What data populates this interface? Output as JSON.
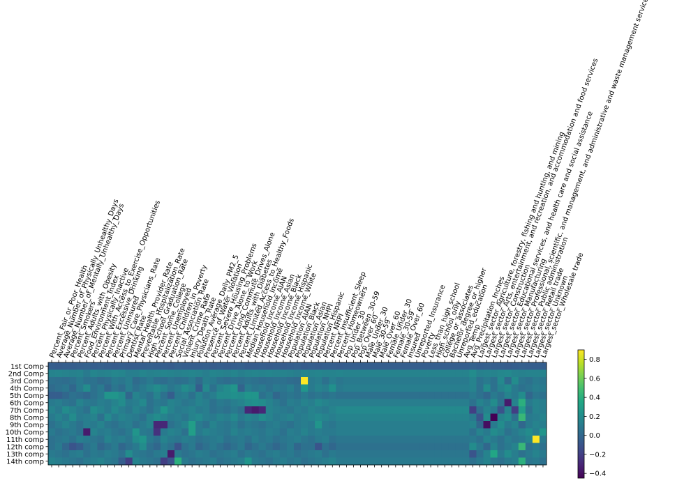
{
  "chart_data": {
    "type": "heatmap",
    "rows": [
      "1st Comp",
      "2nd Comp",
      "3rd Comp",
      "4th Comp",
      "5th Comp",
      "6th Comp",
      "7th Comp",
      "8th Comp",
      "9th Comp",
      "10th Comp",
      "11th comp",
      "12th comp",
      "13th comp",
      "14th comp"
    ],
    "columns": [
      "Percent_Fair_or_Poor_Health",
      "Average_Number_of_Physically_Unhealthy_Days",
      "Average_Number_of_Mentally_Unhealthy_Days",
      "Percent_Smokers",
      "Percent_Adults_with_Obesity",
      "Food_Environment_Index",
      "Percent_Physically_Inactive",
      "Percent_With_Access_to_Exercise_Opportunities",
      "Percent_Excessive_Drinking",
      "Percent_Uninsured",
      "Primary_Care_Physicians_Rate",
      "Dentist_Rate",
      "Mental_Health_Provider_Rate",
      "Preventable_Hospitalization_Rate",
      "High_School_Graduation_Rate",
      "Percent_Some_College",
      "Percent_Unemployed",
      "Percent_Children_in_Poverty",
      "Social_Association_Rate",
      "Violent_Crime_Rate",
      "Injury_Death_Rate",
      "Pollution_Average_Daily_PM2_5",
      "Presence_of_Water_Violation",
      "Percent_Severe_Housing_Problems",
      "Percent_Drive_Alone_to_Work",
      "Percent_Long_Commute_Drives_Alone",
      "Percent_Adults_with_Diabetes",
      "Percent_Limited_Access_to_Healthy_Foods",
      "Median_Household_Income",
      "Household_Income_AIAN",
      "Household_Income_Asian",
      "Household_Income_Black",
      "Household_Income_Hispanic",
      "Household_Income_White",
      "Population_AIAN",
      "Population_Black",
      "Population_Asian",
      "Population_NHPI",
      "Population_Hispanic",
      "Percent_NHPI",
      "Percent_Insufficient_Sleep",
      "Percent_Homeowners",
      "Pop_Under_30",
      "Pop_Between_30-59",
      "Pop_Over_60",
      "Male_Under_30",
      "Male_30-59",
      "Male_Over_60",
      "Female_Under_30",
      "Female_30-59",
      "Female_Over_60",
      "Insured",
      "Unreported_Insurance",
      "Poverty",
      "Less_than_high_school",
      "High_school_only",
      "College_or_associates",
      "Bachelor_degree_or_higher",
      "Unreported_education",
      "Avg_Temp",
      "Avg_Precipitation_Inches",
      "Largest_sector_Agriculture, forestry, fishing and hunting, and mining",
      "Largest_sector_Arts, entertainment, and recreation, and accommodation and food services",
      "Largest_sector_Construction",
      "Largest_sector_Educational services, and health care and social assistance",
      "Largest_sector_Manufacturing",
      "Largest_sector_Professional, scientific, and management, and administrative and waste management services",
      "Largest_sector_Public administration",
      "Largest_sector_Retail trade",
      "Largest_sector_Unknown",
      "Largest_sector_Wholesale trade"
    ],
    "colorbar": {
      "min": -0.45,
      "max": 0.9,
      "ticks": [
        -0.4,
        -0.2,
        0.0,
        0.2,
        0.4,
        0.6,
        0.8
      ],
      "tick_labels": [
        "−0.4",
        "−0.2",
        "0.0",
        "0.2",
        "0.4",
        "0.6",
        "0.8"
      ]
    },
    "colormap": "viridis",
    "values": [
      [
        -0.05,
        -0.06,
        -0.05,
        -0.05,
        -0.04,
        -0.03,
        -0.05,
        -0.04,
        -0.05,
        -0.06,
        -0.05,
        -0.06,
        -0.06,
        -0.05,
        -0.04,
        -0.05,
        -0.05,
        -0.06,
        -0.04,
        -0.05,
        -0.05,
        -0.05,
        -0.04,
        -0.06,
        -0.05,
        -0.06,
        -0.05,
        -0.04,
        -0.06,
        -0.06,
        -0.05,
        -0.06,
        -0.05,
        -0.06,
        -0.05,
        -0.04,
        -0.06,
        -0.05,
        -0.06,
        -0.05,
        -0.05,
        -0.06,
        -0.05,
        -0.05,
        -0.05,
        -0.05,
        -0.05,
        -0.05,
        -0.05,
        -0.05,
        -0.05,
        -0.05,
        -0.05,
        -0.05,
        -0.05,
        -0.05,
        -0.05,
        -0.05,
        -0.05,
        -0.05,
        -0.03,
        -0.05,
        -0.04,
        -0.05,
        -0.05,
        -0.06,
        -0.05,
        -0.04,
        -0.05,
        -0.05,
        -0.05
      ],
      [
        0.15,
        0.16,
        0.15,
        0.14,
        0.15,
        0.1,
        0.16,
        0.14,
        0.15,
        0.17,
        0.16,
        0.12,
        0.13,
        0.16,
        0.14,
        0.15,
        0.16,
        0.15,
        0.14,
        0.15,
        0.16,
        0.15,
        0.12,
        0.16,
        0.15,
        0.14,
        0.16,
        0.13,
        0.15,
        0.16,
        0.15,
        0.16,
        0.15,
        0.15,
        0.14,
        0.12,
        0.16,
        0.15,
        0.16,
        0.15,
        0.15,
        0.16,
        0.15,
        0.15,
        0.15,
        0.15,
        0.15,
        0.15,
        0.15,
        0.15,
        0.15,
        0.15,
        0.15,
        0.15,
        0.15,
        0.15,
        0.15,
        0.15,
        0.15,
        0.15,
        0.2,
        0.14,
        0.15,
        0.15,
        0.17,
        0.18,
        0.15,
        0.14,
        0.15,
        0.15,
        0.15
      ],
      [
        0.05,
        0.04,
        0.03,
        0.05,
        0.1,
        0.05,
        0.06,
        0.02,
        0.04,
        0.1,
        0.08,
        0.12,
        0.02,
        0.06,
        0.1,
        0.04,
        0.03,
        0.07,
        0.04,
        0.05,
        0.1,
        0.02,
        0.13,
        0.1,
        0.05,
        0.03,
        0.06,
        0.04,
        0.07,
        0.05,
        0.03,
        0.04,
        0.05,
        0.05,
        0.03,
        0.02,
        0.9,
        0.1,
        0.12,
        0.05,
        0.12,
        0.08,
        0.1,
        0.1,
        0.1,
        0.1,
        0.1,
        0.1,
        0.1,
        0.1,
        0.1,
        0.1,
        0.1,
        0.1,
        0.1,
        0.1,
        0.1,
        0.1,
        0.1,
        0.1,
        0.15,
        0.06,
        0.1,
        0.05,
        0.18,
        0.02,
        0.2,
        0.08,
        0.05,
        0.1,
        0.08
      ],
      [
        0.02,
        0.05,
        0.08,
        0.0,
        0.1,
        0.2,
        0.05,
        0.1,
        0.0,
        0.08,
        0.03,
        0.12,
        0.05,
        0.1,
        0.15,
        0.2,
        0.15,
        0.08,
        0.12,
        0.2,
        0.15,
        -0.05,
        0.18,
        0.05,
        0.15,
        0.2,
        0.25,
        -0.02,
        0.12,
        0.08,
        0.1,
        0.05,
        0.1,
        0.08,
        0.12,
        0.05,
        0.25,
        0.1,
        0.15,
        0.12,
        0.22,
        0.1,
        0.12,
        0.12,
        0.12,
        0.12,
        0.12,
        0.12,
        0.12,
        0.12,
        0.12,
        0.12,
        0.12,
        0.12,
        0.12,
        0.12,
        0.12,
        0.12,
        0.12,
        0.12,
        0.15,
        0.05,
        0.2,
        0.05,
        0.15,
        0.2,
        0.1,
        0.05,
        0.08,
        0.12,
        0.1
      ],
      [
        -0.05,
        -0.05,
        0.0,
        0.05,
        0.03,
        0.0,
        0.05,
        0.1,
        0.25,
        0.25,
        0.2,
        0.0,
        0.15,
        0.1,
        0.05,
        0.15,
        0.05,
        -0.05,
        0.1,
        0.12,
        0.05,
        0.15,
        0.08,
        0.12,
        0.2,
        0.2,
        0.22,
        0.2,
        0.25,
        0.25,
        0.05,
        0.1,
        0.0,
        0.05,
        0.08,
        0.05,
        0.1,
        0.05,
        0.08,
        0.05,
        0.08,
        0.05,
        0.05,
        0.05,
        0.05,
        0.05,
        0.05,
        0.05,
        0.05,
        0.05,
        0.05,
        0.05,
        0.05,
        0.05,
        0.05,
        0.05,
        0.05,
        0.05,
        0.05,
        0.05,
        0.1,
        0.05,
        0.0,
        0.1,
        0.05,
        0.15,
        0.1,
        0.2,
        0.0,
        0.08,
        0.05
      ],
      [
        0.1,
        0.12,
        0.08,
        0.05,
        0.15,
        0.1,
        0.08,
        0.12,
        0.1,
        0.15,
        0.2,
        0.1,
        0.12,
        0.18,
        0.05,
        0.1,
        0.08,
        0.15,
        0.12,
        0.08,
        0.1,
        0.15,
        0.12,
        0.05,
        0.1,
        0.08,
        0.12,
        0.15,
        0.2,
        0.22,
        0.2,
        0.15,
        0.1,
        0.05,
        0.12,
        0.1,
        0.15,
        0.12,
        0.18,
        0.15,
        0.12,
        0.12,
        0.12,
        0.12,
        0.12,
        0.12,
        0.12,
        0.12,
        0.12,
        0.12,
        0.12,
        0.12,
        0.12,
        0.12,
        0.12,
        0.12,
        0.12,
        0.12,
        0.12,
        0.12,
        0.05,
        0.15,
        0.1,
        0.2,
        0.05,
        -0.35,
        0.15,
        0.4,
        0.1,
        0.15,
        0.12
      ],
      [
        0.15,
        0.1,
        0.2,
        0.15,
        0.1,
        0.05,
        0.2,
        0.15,
        0.1,
        0.18,
        0.12,
        0.08,
        0.15,
        0.1,
        0.05,
        0.12,
        0.25,
        0.15,
        0.1,
        0.12,
        0.15,
        0.1,
        0.12,
        0.05,
        0.08,
        0.05,
        0.1,
        0.05,
        -0.3,
        -0.35,
        -0.3,
        0.15,
        0.12,
        0.1,
        0.08,
        0.12,
        0.1,
        0.15,
        0.12,
        0.1,
        0.15,
        0.18,
        0.18,
        0.18,
        0.18,
        0.18,
        0.18,
        0.18,
        0.18,
        0.18,
        0.18,
        0.18,
        0.18,
        0.18,
        0.18,
        0.18,
        0.18,
        0.18,
        0.18,
        0.18,
        -0.2,
        0.05,
        0.15,
        0.1,
        -0.1,
        0.15,
        -0.2,
        0.3,
        0.05,
        0.15,
        0.12
      ],
      [
        0.1,
        0.15,
        0.1,
        0.2,
        0.1,
        0.12,
        0.15,
        0.05,
        0.18,
        0.1,
        0.15,
        0.12,
        0.1,
        0.05,
        0.15,
        0.2,
        0.15,
        0.1,
        0.12,
        0.08,
        0.15,
        0.18,
        0.12,
        0.1,
        0.15,
        0.12,
        0.18,
        0.1,
        0.15,
        0.12,
        0.2,
        0.15,
        0.1,
        0.12,
        0.15,
        0.1,
        0.12,
        0.15,
        0.18,
        0.15,
        0.12,
        0.15,
        0.15,
        0.15,
        0.15,
        0.15,
        0.15,
        0.15,
        0.15,
        0.15,
        0.15,
        0.15,
        0.15,
        0.15,
        0.15,
        0.15,
        0.15,
        0.15,
        0.15,
        0.15,
        0.1,
        -0.1,
        0.2,
        -0.45,
        0.15,
        0.2,
        0.05,
        0.45,
        0.1,
        0.12,
        0.15
      ],
      [
        0.05,
        0.1,
        0.15,
        0.1,
        0.05,
        0.12,
        0.1,
        0.15,
        0.08,
        0.05,
        0.1,
        0.12,
        0.05,
        0.1,
        0.15,
        -0.3,
        -0.3,
        0.05,
        0.1,
        0.15,
        0.3,
        0.1,
        0.05,
        0.15,
        0.1,
        0.08,
        0.12,
        0.05,
        0.1,
        0.08,
        0.05,
        0.1,
        0.12,
        0.08,
        0.05,
        0.1,
        0.12,
        0.1,
        0.25,
        0.1,
        0.08,
        0.12,
        0.12,
        0.12,
        0.12,
        0.12,
        0.12,
        0.12,
        0.12,
        0.12,
        0.12,
        0.12,
        0.12,
        0.12,
        0.12,
        0.12,
        0.12,
        0.12,
        0.12,
        0.12,
        0.15,
        0.0,
        -0.4,
        0.1,
        0.2,
        0.1,
        0.15,
        0.0,
        0.1,
        0.15,
        0.12
      ],
      [
        0.1,
        0.05,
        0.08,
        0.1,
        0.05,
        -0.35,
        0.15,
        0.1,
        0.12,
        0.08,
        0.05,
        0.1,
        0.25,
        0.1,
        0.08,
        -0.25,
        0.1,
        0.15,
        0.12,
        0.05,
        0.3,
        0.1,
        0.15,
        0.12,
        0.1,
        0.08,
        0.15,
        0.1,
        0.12,
        0.1,
        0.08,
        0.12,
        0.1,
        0.05,
        0.12,
        0.1,
        0.15,
        0.1,
        0.12,
        0.1,
        0.1,
        0.12,
        0.12,
        0.12,
        0.12,
        0.12,
        0.12,
        0.12,
        0.12,
        0.12,
        0.12,
        0.12,
        0.12,
        0.12,
        0.12,
        0.12,
        0.12,
        0.12,
        0.12,
        0.12,
        0.05,
        0.15,
        0.1,
        0.2,
        0.15,
        0.05,
        0.1,
        0.15,
        0.2,
        0.12,
        0.25
      ],
      [
        0.05,
        0.08,
        0.1,
        0.05,
        0.12,
        0.1,
        0.08,
        0.05,
        0.15,
        0.1,
        0.12,
        0.08,
        0.2,
        0.25,
        0.1,
        0.05,
        0.15,
        0.1,
        0.08,
        0.12,
        0.1,
        0.05,
        0.08,
        0.1,
        0.12,
        0.05,
        0.08,
        0.1,
        0.05,
        0.12,
        0.08,
        0.1,
        0.05,
        0.08,
        0.1,
        0.12,
        0.08,
        0.05,
        0.1,
        0.12,
        0.05,
        0.08,
        0.08,
        0.08,
        0.08,
        0.08,
        0.08,
        0.08,
        0.08,
        0.08,
        0.08,
        0.08,
        0.08,
        0.08,
        0.08,
        0.08,
        0.08,
        0.08,
        0.08,
        0.08,
        0.1,
        0.05,
        0.15,
        0.1,
        0.05,
        0.12,
        0.08,
        0.1,
        0.15,
        0.9,
        0.1
      ],
      [
        0.05,
        0.1,
        0.0,
        -0.1,
        -0.05,
        0.05,
        0.1,
        0.0,
        0.05,
        0.1,
        0.0,
        0.05,
        0.1,
        0.2,
        0.05,
        0.0,
        0.1,
        0.05,
        -0.1,
        0.05,
        0.1,
        0.0,
        0.05,
        0.1,
        0.05,
        0.0,
        0.05,
        0.1,
        0.0,
        0.05,
        0.1,
        0.05,
        0.0,
        0.05,
        0.1,
        0.0,
        0.05,
        0.05,
        -0.1,
        0.05,
        0.0,
        0.05,
        0.05,
        0.05,
        0.05,
        0.05,
        0.05,
        0.05,
        0.05,
        0.05,
        0.05,
        0.05,
        0.05,
        0.05,
        0.05,
        0.05,
        0.05,
        0.05,
        0.05,
        0.05,
        0.2,
        0.1,
        0.0,
        0.15,
        0.05,
        0.1,
        0.15,
        0.45,
        0.05,
        0.1,
        0.05
      ],
      [
        0.1,
        0.08,
        0.05,
        0.1,
        0.12,
        0.05,
        0.1,
        0.08,
        0.12,
        0.1,
        0.05,
        0.2,
        0.1,
        0.08,
        0.05,
        0.1,
        0.12,
        -0.35,
        0.1,
        0.05,
        0.08,
        0.12,
        0.1,
        0.05,
        0.08,
        0.1,
        0.12,
        0.05,
        0.1,
        0.08,
        0.05,
        0.1,
        0.12,
        0.08,
        0.1,
        0.05,
        0.08,
        0.1,
        0.12,
        0.05,
        0.1,
        0.08,
        0.08,
        0.08,
        0.08,
        0.08,
        0.08,
        0.08,
        0.08,
        0.08,
        0.08,
        0.08,
        0.08,
        0.08,
        0.08,
        0.08,
        0.08,
        0.08,
        0.08,
        0.08,
        -0.1,
        0.05,
        0.15,
        0.35,
        0.1,
        0.2,
        0.12,
        0.05,
        0.1,
        0.15,
        0.1
      ],
      [
        0.15,
        0.12,
        0.1,
        0.08,
        0.05,
        0.1,
        0.12,
        0.15,
        0.1,
        0.08,
        -0.05,
        -0.2,
        0.15,
        0.1,
        0.08,
        0.05,
        -0.2,
        -0.1,
        0.4,
        0.1,
        0.05,
        0.08,
        0.1,
        0.12,
        0.05,
        0.08,
        0.1,
        0.12,
        0.25,
        0.1,
        0.08,
        0.05,
        0.1,
        0.12,
        0.08,
        0.1,
        0.05,
        0.08,
        0.1,
        0.12,
        0.15,
        0.1,
        0.1,
        0.1,
        0.1,
        0.1,
        0.1,
        0.1,
        0.1,
        0.1,
        0.1,
        0.1,
        0.1,
        0.1,
        0.1,
        0.1,
        0.1,
        0.1,
        0.1,
        0.1,
        0.05,
        0.1,
        0.15,
        0.08,
        0.05,
        0.1,
        0.12,
        0.4,
        0.08,
        0.1,
        0.05
      ]
    ]
  }
}
